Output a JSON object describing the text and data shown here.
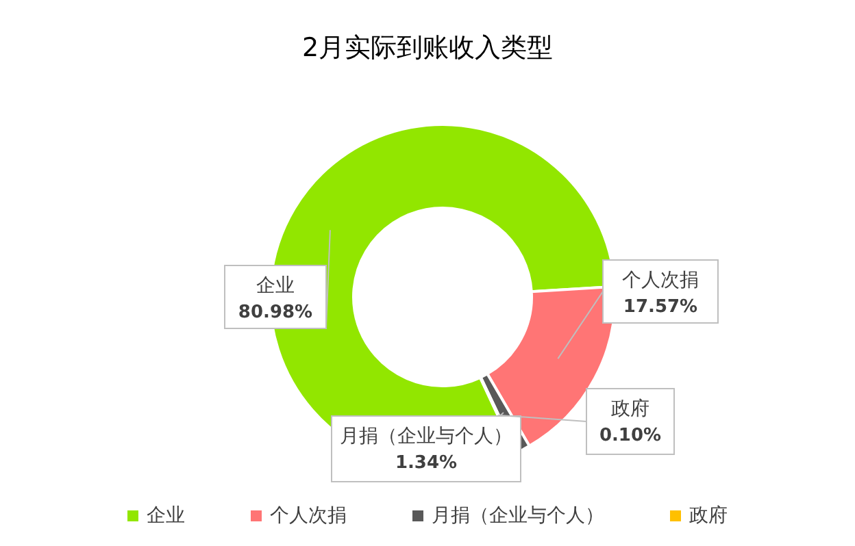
{
  "chart_data": {
    "type": "donut",
    "title": "2月实际到账收入类型",
    "categories": [
      "企业",
      "个人次捐",
      "月捐（企业与个人）",
      "政府"
    ],
    "values": [
      80.98,
      17.57,
      1.34,
      0.1
    ],
    "colors": [
      "#92e600",
      "#ff7575",
      "#595959",
      "#ffc000"
    ],
    "value_labels": [
      "80.98%",
      "17.57%",
      "1.34%",
      "0.10%"
    ],
    "legend": "bottom"
  }
}
